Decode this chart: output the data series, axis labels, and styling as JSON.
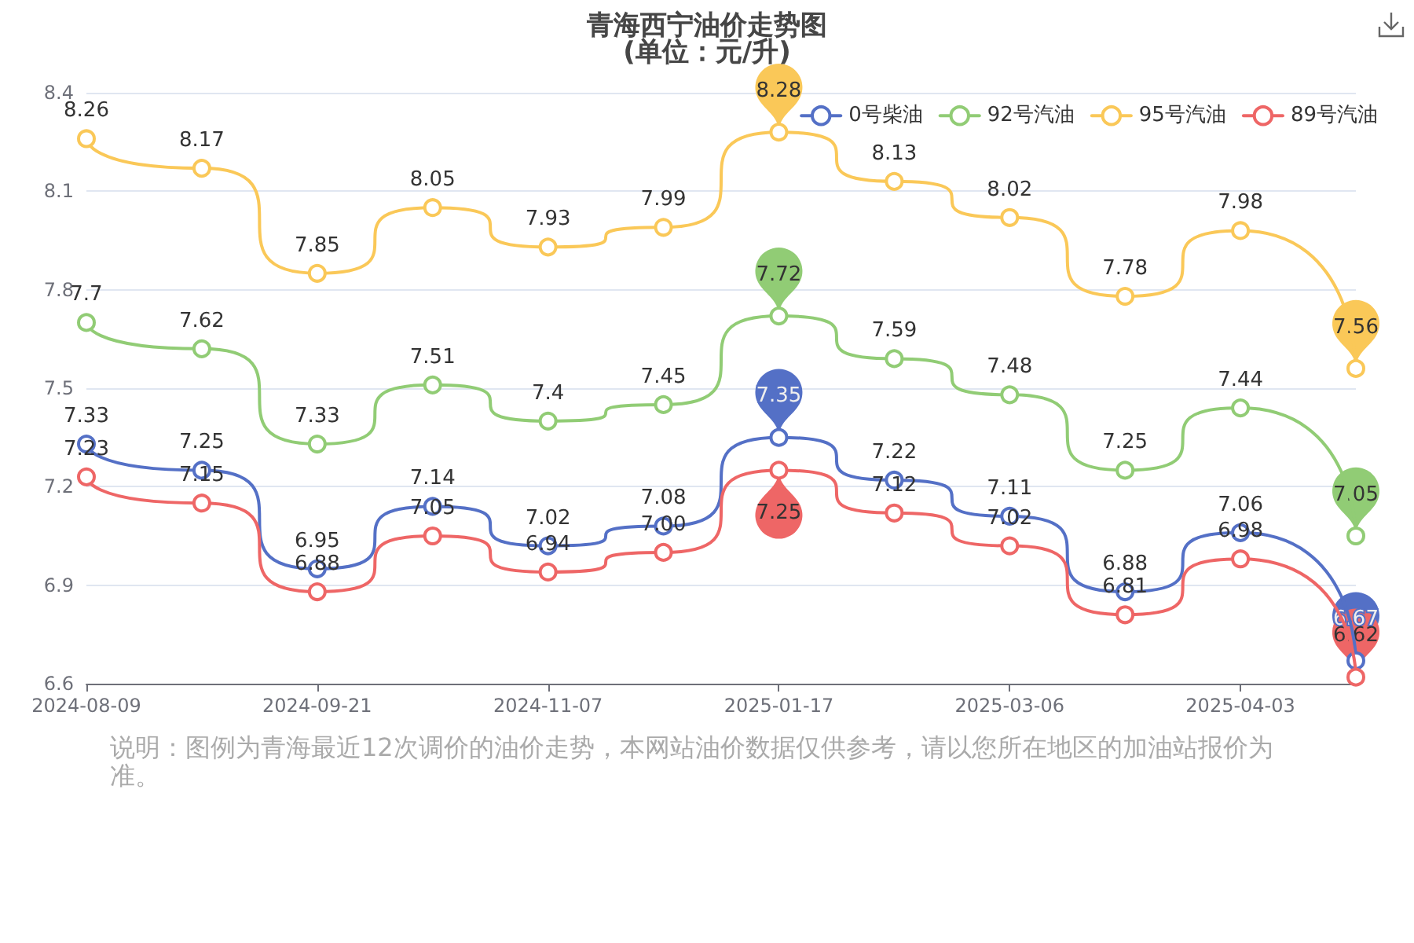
{
  "chart_data": {
    "type": "line",
    "title": "青海西宁油价走势图",
    "subtitle": "(单位：元/升)",
    "categories": [
      "2024-08-09",
      null,
      "2024-09-21",
      null,
      "2024-11-07",
      null,
      "2025-01-17",
      null,
      "2025-03-06",
      null,
      "2025-04-03",
      null
    ],
    "series": [
      {
        "name": "0号柴油",
        "color": "#5470c6",
        "values": [
          7.33,
          7.25,
          6.95,
          7.14,
          7.02,
          7.08,
          7.35,
          7.22,
          7.11,
          6.88,
          7.06,
          6.67
        ],
        "value_labels": [
          "7.33",
          "7.25",
          "6.95",
          "7.14",
          "7.02",
          "7.08",
          null,
          "7.22",
          "7.11",
          "6.88",
          "7.06",
          null
        ]
      },
      {
        "name": "92号汽油",
        "color": "#91cc75",
        "values": [
          7.7,
          7.62,
          7.33,
          7.51,
          7.4,
          7.45,
          7.72,
          7.59,
          7.48,
          7.25,
          7.44,
          7.05
        ],
        "value_labels": [
          "7.7",
          "7.62",
          "7.33",
          "7.51",
          "7.4",
          "7.45",
          null,
          "7.59",
          "7.48",
          "7.25",
          "7.44",
          null
        ]
      },
      {
        "name": "95号汽油",
        "color": "#fac858",
        "values": [
          8.26,
          8.17,
          7.85,
          8.05,
          7.93,
          7.99,
          8.28,
          8.13,
          8.02,
          7.78,
          7.98,
          7.56
        ],
        "value_labels": [
          "8.26",
          "8.17",
          "7.85",
          "8.05",
          "7.93",
          "7.99",
          null,
          "8.13",
          "8.02",
          "7.78",
          "7.98",
          null
        ]
      },
      {
        "name": "89号汽油",
        "color": "#ee6666",
        "values": [
          7.23,
          7.15,
          6.88,
          7.05,
          6.94,
          7.0,
          7.25,
          7.12,
          7.02,
          6.81,
          6.98,
          6.62
        ],
        "value_labels": [
          "7.23",
          "7.15",
          "6.88",
          "7.05",
          "6.94",
          "7.00",
          null,
          "7.12",
          "7.02",
          "6.81",
          "6.98",
          null
        ]
      }
    ],
    "ylim": [
      6.6,
      8.4
    ],
    "yticks": [
      6.6,
      6.9,
      7.2,
      7.5,
      7.8,
      8.1,
      8.4
    ],
    "grid": "y",
    "legend": "top right",
    "marker": "circle",
    "annotations": [
      "说明：图例为青海最近12次调价的油价走势，本网站油价数据仅供参考，请以您所在地区的加油站报价为准。",
      {
        "text": "8.28",
        "x": "2025-01-17",
        "y": 8.28
      },
      {
        "text": "7.56",
        "y": 7.56
      },
      {
        "text": "7.72",
        "x": "2025-01-17",
        "y": 7.72
      },
      {
        "text": "7.05",
        "y": 7.05
      },
      {
        "text": "7.35",
        "x": "2025-01-17",
        "y": 7.35
      },
      {
        "text": "6.67",
        "y": 6.67
      },
      {
        "text": "7.25",
        "x": "2025-01-17",
        "y": 7.25
      },
      {
        "text": "6.62",
        "y": 6.62
      }
    ]
  }
}
